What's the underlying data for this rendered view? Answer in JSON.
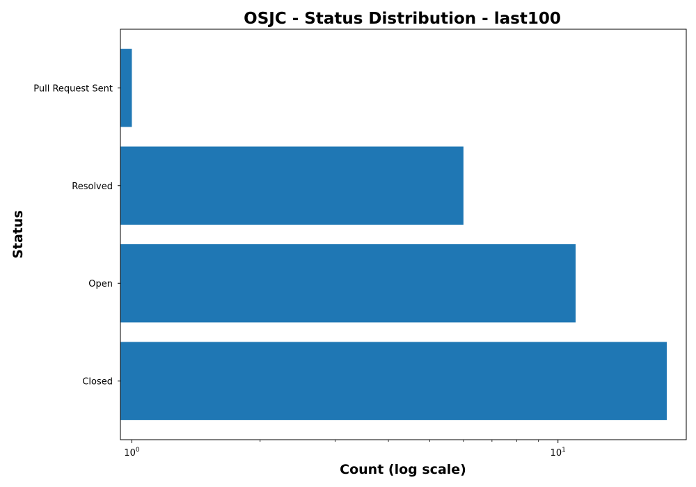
{
  "chart_data": {
    "type": "bar",
    "orientation": "horizontal",
    "title": "OSJC - Status Distribution - last100",
    "xlabel": "Count (log scale)",
    "ylabel": "Status",
    "x_scale": "log",
    "xlim": [
      0.94,
      20
    ],
    "x_ticks": [
      {
        "base": "10",
        "exp": "0",
        "value": 1
      },
      {
        "base": "10",
        "exp": "1",
        "value": 10
      }
    ],
    "categories": [
      "Closed",
      "Open",
      "Resolved",
      "Pull Request Sent"
    ],
    "values": [
      18,
      11,
      6,
      1
    ],
    "bar_color": "#1f77b4",
    "grid": false,
    "legend": "none"
  }
}
